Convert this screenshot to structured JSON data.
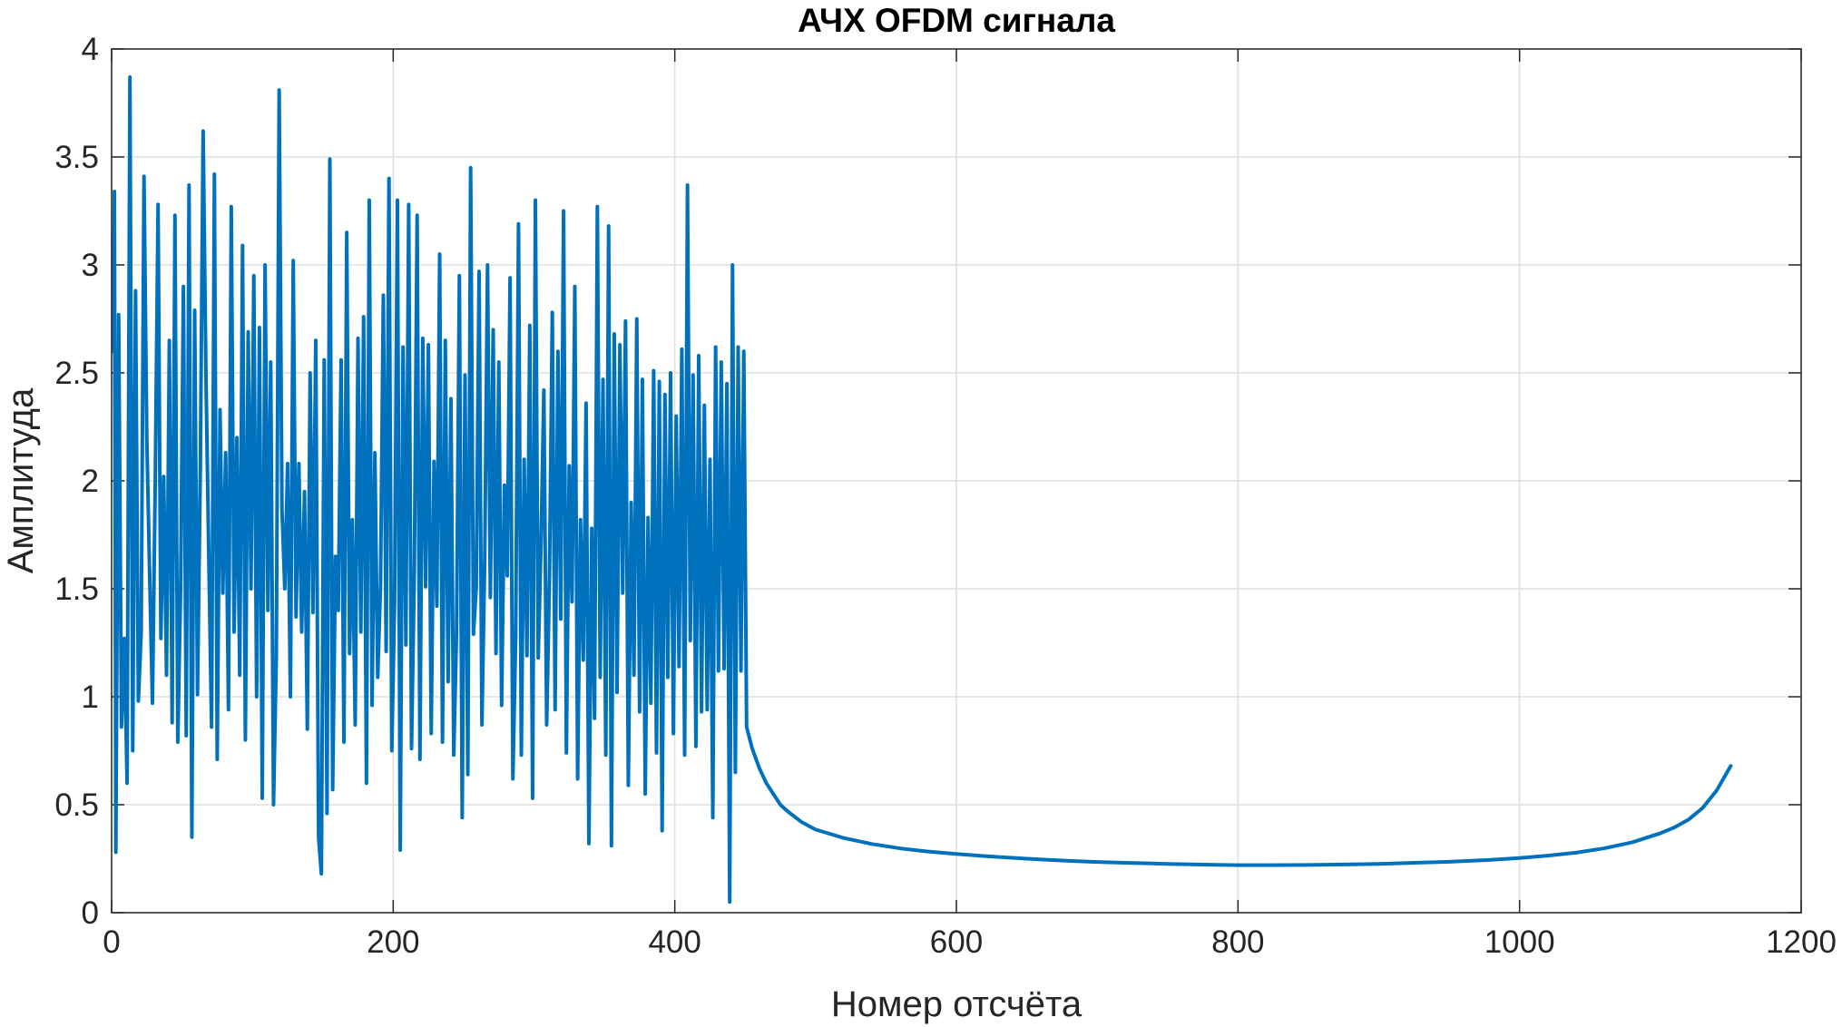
{
  "chart_data": {
    "type": "line",
    "title": "АЧХ OFDM сигнала",
    "xlabel": "Номер отсчёта",
    "ylabel": "Амплитуда",
    "xlim": [
      0,
      1200
    ],
    "ylim": [
      0,
      4
    ],
    "xticks": [
      0,
      200,
      400,
      600,
      800,
      1000,
      1200
    ],
    "yticks": [
      0,
      0.5,
      1,
      1.5,
      2,
      2.5,
      3,
      3.5,
      4
    ],
    "xtick_labels": [
      "0",
      "200",
      "400",
      "600",
      "800",
      "1000",
      "1200"
    ],
    "ytick_labels": [
      "0",
      "0.5",
      "1",
      "1.5",
      "2",
      "2.5",
      "3",
      "3.5",
      "4"
    ],
    "grid": true,
    "line_color": "#0072BD",
    "series": [
      {
        "x": [
          1,
          2,
          3,
          5,
          7,
          9,
          11,
          13,
          15,
          17,
          19,
          21,
          23,
          25,
          27,
          29,
          31,
          33,
          35,
          37,
          39,
          41,
          43,
          45,
          47,
          49,
          51,
          53,
          55,
          57,
          59,
          61,
          63,
          65,
          67,
          69,
          71,
          73,
          75,
          77,
          79,
          81,
          83,
          85,
          87,
          89,
          91,
          93,
          95,
          97,
          99,
          101,
          103,
          105,
          107,
          109,
          111,
          113,
          115,
          117,
          119,
          121,
          123,
          125,
          127,
          129,
          131,
          133,
          135,
          137,
          139,
          141,
          143,
          145,
          147,
          149,
          151,
          153,
          155,
          157,
          159,
          161,
          163,
          165,
          167,
          169,
          171,
          173,
          175,
          177,
          179,
          181,
          183,
          185,
          187,
          189,
          191,
          193,
          195,
          197,
          199,
          201,
          203,
          205,
          207,
          209,
          211,
          213,
          215,
          217,
          219,
          221,
          223,
          225,
          227,
          229,
          231,
          233,
          235,
          237,
          239,
          241,
          243,
          245,
          247,
          249,
          251,
          253,
          255,
          257,
          259,
          261,
          263,
          265,
          267,
          269,
          271,
          273,
          275,
          277,
          279,
          281,
          283,
          285,
          287,
          289,
          291,
          293,
          295,
          297,
          299,
          301,
          303,
          305,
          307,
          309,
          311,
          313,
          315,
          317,
          319,
          321,
          323,
          325,
          327,
          329,
          331,
          333,
          335,
          337,
          339,
          341,
          343,
          345,
          347,
          349,
          351,
          353,
          355,
          357,
          359,
          361,
          363,
          365,
          367,
          369,
          371,
          373,
          375,
          377,
          379,
          381,
          383,
          385,
          387,
          389,
          391,
          393,
          395,
          397,
          399,
          401,
          403,
          405,
          407,
          409,
          411,
          413,
          415,
          417,
          419,
          421,
          423,
          425,
          427,
          429,
          431,
          433,
          435,
          437,
          439,
          441,
          443,
          445,
          447,
          449,
          451
        ],
        "y": [
          2.6,
          3.34,
          0.28,
          2.77,
          0.86,
          1.27,
          0.6,
          3.87,
          0.75,
          2.88,
          0.98,
          1.3,
          3.41,
          2.2,
          1.57,
          0.97,
          2.0,
          3.28,
          1.27,
          2.02,
          1.1,
          2.65,
          0.88,
          3.23,
          0.79,
          1.5,
          2.9,
          0.82,
          3.37,
          0.35,
          2.79,
          1.01,
          2.05,
          3.62,
          2.49,
          1.66,
          0.86,
          3.42,
          0.71,
          2.33,
          1.48,
          2.13,
          0.94,
          3.27,
          1.3,
          2.2,
          1.1,
          3.09,
          0.8,
          2.69,
          1.5,
          2.95,
          1.0,
          2.71,
          0.53,
          3.0,
          1.4,
          2.55,
          0.5,
          1.2,
          3.81,
          1.87,
          1.5,
          2.08,
          1.0,
          3.02,
          1.37,
          2.08,
          1.3,
          1.95,
          0.85,
          2.5,
          1.39,
          2.65,
          0.35,
          0.18,
          2.56,
          0.46,
          3.49,
          0.57,
          1.65,
          1.4,
          2.56,
          0.79,
          3.15,
          1.2,
          1.82,
          0.87,
          2.66,
          1.3,
          2.76,
          0.6,
          3.3,
          0.96,
          2.13,
          1.09,
          1.52,
          2.86,
          1.21,
          3.4,
          0.75,
          1.45,
          3.3,
          0.29,
          2.62,
          1.24,
          3.28,
          0.76,
          1.58,
          3.23,
          0.71,
          2.66,
          1.51,
          2.63,
          0.83,
          2.09,
          1.42,
          3.05,
          0.79,
          2.65,
          1.07,
          2.38,
          0.73,
          1.3,
          2.95,
          0.44,
          2.49,
          0.64,
          3.45,
          1.29,
          1.51,
          2.97,
          0.87,
          1.64,
          3.0,
          1.46,
          2.7,
          1.2,
          2.55,
          0.96,
          1.98,
          1.56,
          2.94,
          0.62,
          1.28,
          3.19,
          0.73,
          2.1,
          1.19,
          2.72,
          0.53,
          3.3,
          1.18,
          1.71,
          2.42,
          0.87,
          1.56,
          2.78,
          0.94,
          2.6,
          1.36,
          3.25,
          0.74,
          2.07,
          1.44,
          2.9,
          0.62,
          1.82,
          1.17,
          2.36,
          0.32,
          1.78,
          0.9,
          3.27,
          1.09,
          2.47,
          0.73,
          3.18,
          0.31,
          2.68,
          1.02,
          2.63,
          1.48,
          2.74,
          0.59,
          1.9,
          1.1,
          2.75,
          0.93,
          2.47,
          0.55,
          1.83,
          0.97,
          2.51,
          0.74,
          2.46,
          0.38,
          2.4,
          1.09,
          2.5,
          0.83,
          2.3,
          1.14,
          2.61,
          0.73,
          3.37,
          1.26,
          2.49,
          0.77,
          2.58,
          0.93,
          2.35,
          0.94,
          2.1,
          0.44,
          2.62,
          1.12,
          2.55,
          1.13,
          2.45,
          0.05,
          3.0,
          0.65,
          2.62,
          1.12,
          2.6,
          0.86
        ],
        "tail": {
          "x": [
            451,
            455,
            460,
            465,
            470,
            475,
            480,
            490,
            500,
            520,
            540,
            560,
            580,
            600,
            620,
            650,
            680,
            700,
            720,
            750,
            780,
            800,
            820,
            850,
            880,
            900,
            920,
            950,
            980,
            1000,
            1020,
            1040,
            1060,
            1080,
            1100,
            1110,
            1120,
            1130,
            1140,
            1150
          ],
          "y": [
            0.86,
            0.76,
            0.67,
            0.6,
            0.55,
            0.5,
            0.47,
            0.42,
            0.385,
            0.346,
            0.318,
            0.298,
            0.283,
            0.272,
            0.262,
            0.25,
            0.24,
            0.235,
            0.231,
            0.226,
            0.222,
            0.22,
            0.22,
            0.221,
            0.224,
            0.226,
            0.23,
            0.236,
            0.245,
            0.253,
            0.264,
            0.278,
            0.298,
            0.326,
            0.368,
            0.395,
            0.431,
            0.485,
            0.566,
            0.68
          ]
        }
      }
    ]
  }
}
